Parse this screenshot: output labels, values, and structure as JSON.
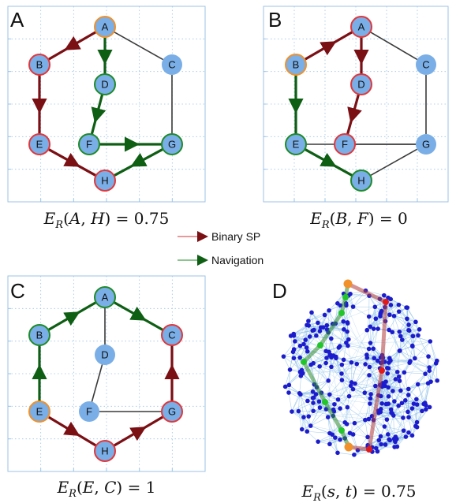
{
  "colors": {
    "node_fill": "#7aaee6",
    "target_ring": "#e0373b",
    "source_ring": "#f0912b",
    "nav_ring": "#1f8a2a",
    "sp_edge": "#7a0f14",
    "nav_edge": "#0e5e14",
    "plain_edge": "#3a3a3a",
    "grid": "#9cc3e6",
    "brain_node": "#1c1ccc",
    "brain_edge": "#8ec1e8"
  },
  "legend": {
    "binary_sp": "Binary SP",
    "navigation": "Navigation"
  },
  "panels": [
    {
      "id": "A",
      "letter": "A",
      "formula": "E_R(A, H) = 0.75",
      "nodes": {
        "A": "source",
        "B": "sp",
        "C": "plain",
        "D": "nav",
        "E": "sp",
        "F": "nav",
        "G": "nav",
        "H": "target"
      },
      "plain_edges": [
        [
          "A",
          "C"
        ],
        [
          "C",
          "G"
        ]
      ],
      "sp_path": [
        "A",
        "B",
        "E",
        "H"
      ],
      "nav_path": [
        "A",
        "D",
        "F",
        "G",
        "H"
      ]
    },
    {
      "id": "B",
      "letter": "B",
      "formula": "E_R(B, F) = 0",
      "nodes": {
        "A": "sp",
        "B": "source",
        "C": "plain",
        "D": "sp",
        "E": "nav",
        "F": "target",
        "G": "plain",
        "H": "nav"
      },
      "plain_edges": [
        [
          "A",
          "C"
        ],
        [
          "C",
          "G"
        ],
        [
          "F",
          "G"
        ],
        [
          "E",
          "G"
        ],
        [
          "H",
          "G"
        ]
      ],
      "sp_path": [
        "B",
        "A",
        "D",
        "F"
      ],
      "nav_path": [
        "B",
        "E",
        "H"
      ]
    },
    {
      "id": "C",
      "letter": "C",
      "formula": "E_R(E, C) = 1",
      "nodes": {
        "A": "nav",
        "B": "nav",
        "C": "target",
        "D": "plain",
        "E": "source",
        "F": "plain",
        "G": "sp",
        "H": "sp"
      },
      "plain_edges": [
        [
          "A",
          "D"
        ],
        [
          "D",
          "F"
        ],
        [
          "F",
          "G"
        ]
      ],
      "sp_path": [
        "E",
        "H",
        "G",
        "C"
      ],
      "nav_path": [
        "E",
        "B",
        "A",
        "C"
      ]
    },
    {
      "id": "D",
      "letter": "D",
      "formula": "E_R(s, t) = 0.75"
    }
  ]
}
